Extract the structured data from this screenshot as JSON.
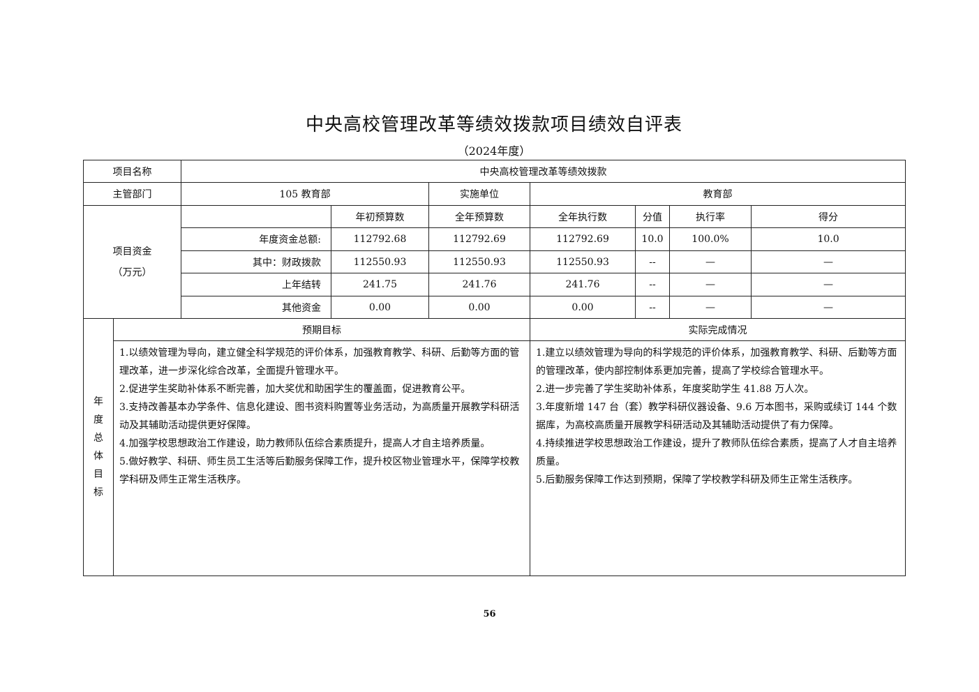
{
  "title": "中央高校管理改革等绩效拨款项目绩效自评表",
  "subtitle": "（2024年度）",
  "project": {
    "label": "项目名称",
    "value": "中央高校管理改革等绩效拨款"
  },
  "dept": {
    "label": "主管部门",
    "value": "105 教育部",
    "impl_label": "实施单位",
    "impl_value": "教育部"
  },
  "funds": {
    "label": "项目资金",
    "unit": "（万元）",
    "headers": [
      "年初预算数",
      "全年预算数",
      "全年执行数",
      "分值",
      "执行率",
      "得分"
    ],
    "rows": [
      {
        "label": "年度资金总额:",
        "values": [
          "112792.68",
          "112792.69",
          "112792.69",
          "10.0",
          "100.0%",
          "10.0"
        ]
      },
      {
        "label": "其中：财政拨款",
        "values": [
          "112550.93",
          "112550.93",
          "112550.93",
          "--",
          "—",
          "—"
        ]
      },
      {
        "label": "上年结转",
        "values": [
          "241.75",
          "241.76",
          "241.76",
          "--",
          "—",
          "—"
        ]
      },
      {
        "label": "其他资金",
        "values": [
          "0.00",
          "0.00",
          "0.00",
          "--",
          "—",
          "—"
        ]
      }
    ]
  },
  "goals": {
    "label_chars": [
      "年",
      "度",
      "总",
      "体",
      "目",
      "标"
    ],
    "expected_header": "预期目标",
    "actual_header": "实际完成情况",
    "expected": [
      "1.以绩效管理为导向，建立健全科学规范的评价体系，加强教育教学、科研、后勤等方面的管理改革，进一步深化综合改革，全面提升管理水平。",
      "2.促进学生奖助补体系不断完善，加大奖优和助困学生的覆盖面，促进教育公平。",
      "3.支持改善基本办学条件、信息化建设、图书资料购置等业务活动，为高质量开展教学科研活动及其辅助活动提供更好保障。",
      "4.加强学校思想政治工作建设，助力教师队伍综合素质提升，提高人才自主培养质量。",
      "5.做好教学、科研、师生员工生活等后勤服务保障工作，提升校区物业管理水平，保障学校教学科研及师生正常生活秩序。"
    ],
    "actual": [
      "1.建立以绩效管理为导向的科学规范的评价体系，加强教育教学、科研、后勤等方面的管理改革，使内部控制体系更加完善，提高了学校综合管理水平。",
      "2.进一步完善了学生奖助补体系，年度奖助学生 41.88 万人次。",
      "3.年度新增 147 台（套）教学科研仪器设备、9.6 万本图书，采购或续订 144 个数据库，为高校高质量开展教学科研活动及其辅助活动提供了有力保障。",
      "4.持续推进学校思想政治工作建设，提升了教师队伍综合素质，提高了人才自主培养质量。",
      "5.后勤服务保障工作达到预期，保障了学校教学科研及师生正常生活秩序。"
    ]
  },
  "page_number": "56"
}
